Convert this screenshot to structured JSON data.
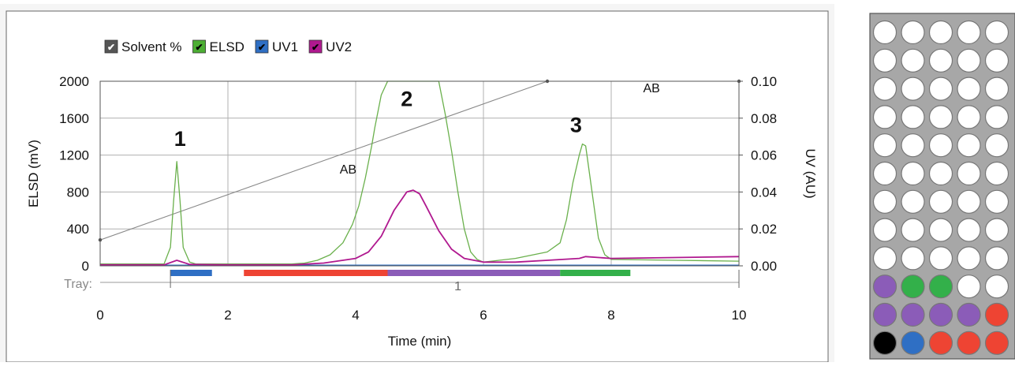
{
  "chart_data": {
    "type": "line",
    "xlabel": "Time (min)",
    "ylabel": "ELSD (mV)",
    "y2label": "UV (AU)",
    "xlim": [
      0,
      10
    ],
    "ylim": [
      0,
      2000
    ],
    "y2lim": [
      0,
      0.1
    ],
    "x_ticks": [
      0,
      2,
      4,
      6,
      8,
      10
    ],
    "y_ticks": [
      0,
      400,
      800,
      1200,
      1600,
      2000
    ],
    "y2_ticks": [
      "0.00",
      "0.02",
      "0.04",
      "0.06",
      "0.08",
      "0.10"
    ],
    "grid": true,
    "legend_position": "top-left",
    "legend": [
      {
        "name": "Solvent %",
        "color": "#555555"
      },
      {
        "name": "ELSD",
        "color": "#4cae33"
      },
      {
        "name": "UV1",
        "color": "#2f6fc4"
      },
      {
        "name": "UV2",
        "color": "#b0188f"
      }
    ],
    "series": [
      {
        "name": "Solvent %",
        "color": "#888888",
        "x": [
          0,
          7.0,
          10
        ],
        "y": [
          280,
          2000,
          2000
        ]
      },
      {
        "name": "ELSD",
        "color": "#6ab04c",
        "x": [
          0,
          1.0,
          1.1,
          1.15,
          1.2,
          1.25,
          1.3,
          1.4,
          1.5,
          2.0,
          3.0,
          3.2,
          3.4,
          3.6,
          3.8,
          3.95,
          4.05,
          4.15,
          4.25,
          4.3,
          4.4,
          4.5,
          5.3,
          5.4,
          5.5,
          5.6,
          5.7,
          5.8,
          5.9,
          6.0,
          6.5,
          7.0,
          7.2,
          7.3,
          7.4,
          7.5,
          7.55,
          7.6,
          7.7,
          7.8,
          7.9,
          8.0,
          9.0,
          10.0
        ],
        "y": [
          20,
          20,
          200,
          700,
          1130,
          700,
          200,
          40,
          20,
          20,
          20,
          30,
          60,
          120,
          250,
          450,
          650,
          950,
          1300,
          1500,
          1850,
          2000,
          2000,
          1650,
          1250,
          800,
          400,
          150,
          70,
          40,
          80,
          150,
          250,
          500,
          900,
          1200,
          1320,
          1300,
          800,
          300,
          120,
          70,
          60,
          50
        ]
      },
      {
        "name": "UV1",
        "color": "#2f6fc4",
        "x": [
          0,
          10
        ],
        "y": [
          5,
          5
        ]
      },
      {
        "name": "UV2",
        "color": "#b0188f",
        "x": [
          0,
          1.0,
          1.2,
          1.4,
          2.0,
          3.0,
          3.5,
          4.0,
          4.2,
          4.4,
          4.6,
          4.8,
          4.9,
          5.0,
          5.1,
          5.3,
          5.5,
          5.7,
          6.0,
          6.5,
          7.0,
          7.5,
          7.6,
          8.0,
          9.0,
          10.0
        ],
        "y": [
          10,
          10,
          60,
          15,
          10,
          10,
          30,
          80,
          150,
          320,
          600,
          800,
          820,
          780,
          650,
          380,
          180,
          80,
          40,
          40,
          60,
          80,
          100,
          80,
          90,
          100
        ]
      }
    ],
    "peak_labels": [
      {
        "text": "1",
        "x": 1.25,
        "y": 1300
      },
      {
        "text": "2",
        "x": 4.8,
        "y": 1730
      },
      {
        "text": "3",
        "x": 7.45,
        "y": 1450
      }
    ],
    "annotations": [
      {
        "text": "AB",
        "x": 3.75,
        "y": 1000
      },
      {
        "text": "AB",
        "x": 8.5,
        "y": 1880
      }
    ],
    "tray": {
      "label": "Tray:",
      "fraction_number": "1",
      "segments": [
        {
          "x0": 1.1,
          "x1": 1.75,
          "color": "#2f6fc4"
        },
        {
          "x0": 2.25,
          "x1": 4.5,
          "color": "#ee4433"
        },
        {
          "x0": 4.5,
          "x1": 7.2,
          "color": "#8b5cb8"
        },
        {
          "x0": 7.2,
          "x1": 8.3,
          "color": "#33b04a"
        }
      ]
    }
  },
  "tray_rack": {
    "empty_color": "#ffffff",
    "rows": [
      [
        "empty",
        "empty",
        "empty",
        "empty",
        "empty"
      ],
      [
        "empty",
        "empty",
        "empty",
        "empty",
        "empty"
      ],
      [
        "empty",
        "empty",
        "empty",
        "empty",
        "empty"
      ],
      [
        "empty",
        "empty",
        "empty",
        "empty",
        "empty"
      ],
      [
        "empty",
        "empty",
        "empty",
        "empty",
        "empty"
      ],
      [
        "empty",
        "empty",
        "empty",
        "empty",
        "empty"
      ],
      [
        "empty",
        "empty",
        "empty",
        "empty",
        "empty"
      ],
      [
        "empty",
        "empty",
        "empty",
        "empty",
        "empty"
      ],
      [
        "empty",
        "empty",
        "empty",
        "empty",
        "empty"
      ],
      [
        "#8b5cb8",
        "#33b04a",
        "#33b04a",
        "empty",
        "empty"
      ],
      [
        "#8b5cb8",
        "#8b5cb8",
        "#8b5cb8",
        "#8b5cb8",
        "#ee4433"
      ],
      [
        "#000000",
        "#2f6fc4",
        "#ee4433",
        "#ee4433",
        "#ee4433"
      ]
    ]
  }
}
